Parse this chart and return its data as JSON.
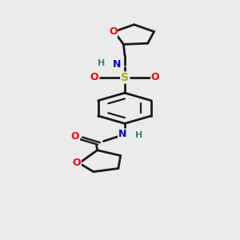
{
  "bg_color": "#ebebeb",
  "bond_color": "#1a1a1a",
  "atom_colors": {
    "O": "#ff0000",
    "N": "#0000cc",
    "S": "#aaaa00",
    "H": "#408080",
    "C": "#1a1a1a"
  },
  "figsize": [
    3.0,
    3.0
  ],
  "dpi": 100
}
